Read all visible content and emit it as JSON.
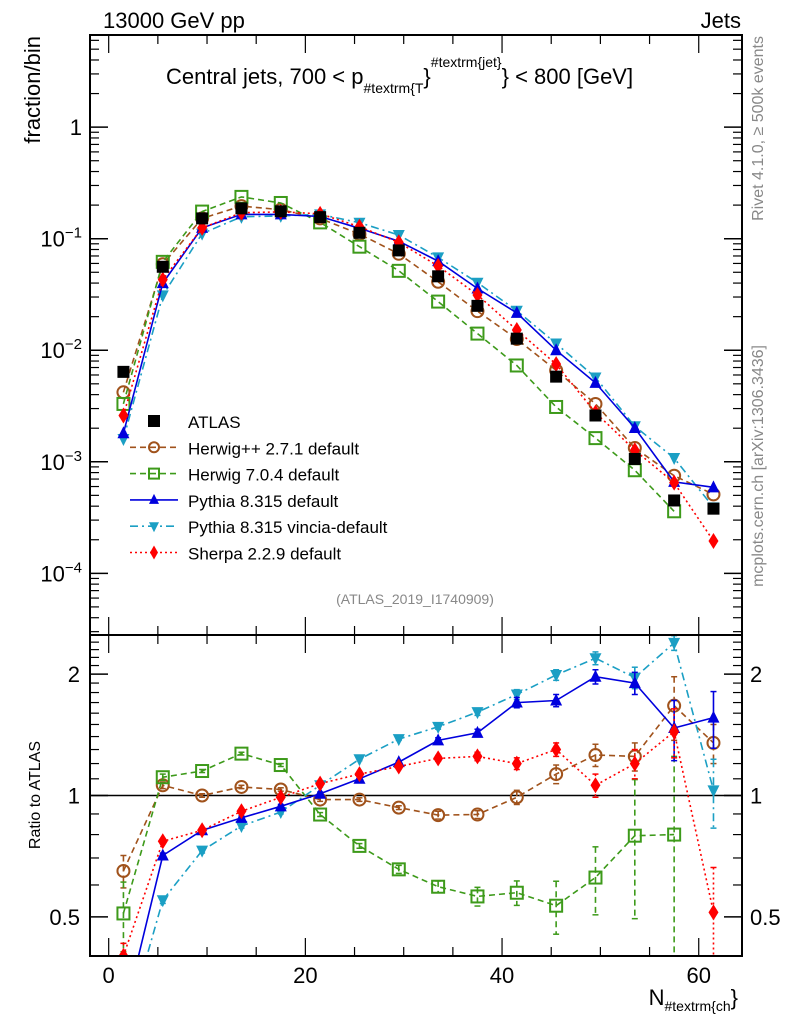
{
  "header": {
    "left": "13000 GeV pp",
    "right": "Jets"
  },
  "side_labels": {
    "rivet": "Rivet 4.1.0, ≥ 500k events",
    "mcplots": "mcplots.cern.ch [arXiv:1306.3436]"
  },
  "chart_data": [
    {
      "type": "line",
      "panel": "main",
      "title": "Central jets, 700 < p_{#textrm{T}}^{#textrm{jet}} < 800 [GeV]",
      "title_parts": {
        "pre": "Central jets, 700 < p",
        "sub": "#textrm{T",
        "close1": "}",
        "sup": "#textrm{jet}",
        "post": "} < 800 [GeV]"
      },
      "ylabel": "fraction/bin",
      "yscale": "log",
      "ylim": [
        2.8e-05,
        6.7
      ],
      "xlim": [
        -1.9,
        64.4
      ],
      "y_tick_labels": [
        "1",
        "10^-1",
        "10^-2",
        "10^-3",
        "10^-4"
      ],
      "y_tick_values": [
        1,
        0.1,
        0.01,
        0.001,
        0.0001
      ],
      "annotation": "(ATLAS_2019_I1740909)",
      "legend_position": "lower-left",
      "x": [
        1.5,
        5.5,
        9.5,
        13.5,
        17.5,
        21.5,
        25.5,
        29.5,
        33.5,
        37.5,
        41.5,
        45.5,
        49.5,
        53.5,
        57.5,
        61.5
      ],
      "series": [
        {
          "name": "ATLAS",
          "color": "#000000",
          "marker": "square",
          "line": "none",
          "values": [
            0.0064,
            0.056,
            0.152,
            0.187,
            0.176,
            0.156,
            0.113,
            0.0785,
            0.046,
            0.025,
            0.0127,
            0.0058,
            0.0026,
            0.00106,
            0.00045,
            0.00038
          ]
        },
        {
          "name": "Herwig++ 2.7.1 default",
          "color": "#a0521b",
          "marker": "open-circle",
          "line": "dashed",
          "values": [
            0.0042,
            0.059,
            0.152,
            0.196,
            0.182,
            0.152,
            0.11,
            0.0732,
            0.0411,
            0.0224,
            0.0126,
            0.0066,
            0.0033,
            0.00133,
            0.00075,
            0.00051
          ]
        },
        {
          "name": "Herwig 7.0.4 default",
          "color": "#3d9a1a",
          "marker": "open-square",
          "line": "dashed",
          "values": [
            0.0033,
            0.062,
            0.175,
            0.237,
            0.209,
            0.14,
            0.0848,
            0.0515,
            0.0273,
            0.0141,
            0.0073,
            0.0031,
            0.00163,
            0.00084,
            0.00036,
            null
          ]
        },
        {
          "name": "Pythia 8.315 default",
          "color": "#0000dd",
          "marker": "triangle-up",
          "line": "solid",
          "values": [
            0.0018,
            0.04,
            0.125,
            0.165,
            0.165,
            0.158,
            0.124,
            0.095,
            0.063,
            0.0358,
            0.0216,
            0.01,
            0.0051,
            0.00201,
            0.00066,
            0.00059
          ]
        },
        {
          "name": "Pythia 8.315 vincia-default",
          "color": "#1b9fc4",
          "marker": "triangle-down",
          "line": "dashdot",
          "values": [
            0.0016,
            0.031,
            0.111,
            0.157,
            0.16,
            0.165,
            0.139,
            0.108,
            0.068,
            0.0403,
            0.0226,
            0.0115,
            0.0057,
            0.00208,
            0.00108,
            0.00039
          ]
        },
        {
          "name": "Sherpa 2.2.9 default",
          "color": "#ff0000",
          "marker": "diamond",
          "line": "dotted",
          "values": [
            0.0026,
            0.043,
            0.125,
            0.171,
            0.174,
            0.167,
            0.128,
            0.0926,
            0.0569,
            0.0313,
            0.0152,
            0.0075,
            0.00276,
            0.00127,
            0.00065,
            0.000195
          ]
        }
      ]
    },
    {
      "type": "line",
      "panel": "ratio",
      "ylabel": "Ratio to ATLAS",
      "xlabel": "N_{#textrm{ch}}",
      "xlabel_parts": {
        "main": "N",
        "sub": "#textrm{ch",
        "close": "}"
      },
      "yscale": "log",
      "ylim": [
        0.4,
        2.5
      ],
      "xlim": [
        -1.9,
        64.4
      ],
      "x_tick_labels": [
        "0",
        "20",
        "40",
        "60"
      ],
      "x_tick_values": [
        0,
        20,
        40,
        60
      ],
      "y_tick_labels": [
        "0.5",
        "1",
        "2"
      ],
      "y_tick_values": [
        0.5,
        1,
        2
      ],
      "reference_line": 1,
      "x": [
        1.5,
        5.5,
        9.5,
        13.5,
        17.5,
        21.5,
        25.5,
        29.5,
        33.5,
        37.5,
        41.5,
        45.5,
        49.5,
        53.5,
        57.5,
        61.5
      ],
      "series": [
        {
          "name": "Herwig++ 2.7.1 default",
          "color": "#a0521b",
          "marker": "open-circle",
          "line": "dashed",
          "values": [
            0.65,
            1.06,
            1.0,
            1.05,
            1.035,
            0.977,
            0.977,
            0.933,
            0.894,
            0.897,
            0.99,
            1.13,
            1.26,
            1.25,
            1.67,
            1.35
          ],
          "errors": [
            0.06,
            0.02,
            0.01,
            0.01,
            0.01,
            0.01,
            0.01,
            0.01,
            0.02,
            0.02,
            0.04,
            0.06,
            0.08,
            0.1,
            0.3,
            0.15
          ]
        },
        {
          "name": "Herwig 7.0.4 default",
          "color": "#3d9a1a",
          "marker": "open-square",
          "line": "dashed",
          "values": [
            0.51,
            1.11,
            1.15,
            1.27,
            1.19,
            0.897,
            0.75,
            0.656,
            0.594,
            0.562,
            0.574,
            0.533,
            0.626,
            0.795,
            0.8,
            null
          ],
          "errors": [
            0.1,
            0.02,
            0.01,
            0.01,
            0.01,
            0.01,
            0.01,
            0.015,
            0.02,
            0.03,
            0.04,
            0.08,
            0.12,
            0.3,
            0.45,
            null
          ]
        },
        {
          "name": "Pythia 8.315 default",
          "color": "#0000dd",
          "marker": "triangle-up",
          "line": "solid",
          "values": [
            0.28,
            0.71,
            0.82,
            0.88,
            0.94,
            1.01,
            1.1,
            1.21,
            1.37,
            1.43,
            1.7,
            1.72,
            1.97,
            1.9,
            1.47,
            1.56
          ],
          "errors": [
            0.02,
            0.01,
            0.01,
            0.01,
            0.01,
            0.01,
            0.01,
            0.01,
            0.02,
            0.03,
            0.05,
            0.06,
            0.08,
            0.12,
            0.25,
            0.25
          ]
        },
        {
          "name": "Pythia 8.315 vincia-default",
          "color": "#1b9fc4",
          "marker": "triangle-down",
          "line": "dashdot",
          "values": [
            0.25,
            0.55,
            0.73,
            0.84,
            0.91,
            1.06,
            1.23,
            1.38,
            1.48,
            1.61,
            1.78,
            1.99,
            2.19,
            1.96,
            2.39,
            1.03
          ],
          "errors": [
            0.02,
            0.01,
            0.01,
            0.01,
            0.01,
            0.01,
            0.01,
            0.01,
            0.02,
            0.03,
            0.05,
            0.06,
            0.08,
            0.12,
            0.1,
            0.2
          ]
        },
        {
          "name": "Sherpa 2.2.9 default",
          "color": "#ff0000",
          "marker": "diamond",
          "line": "dotted",
          "values": [
            0.4,
            0.77,
            0.82,
            0.914,
            0.99,
            1.07,
            1.13,
            1.18,
            1.236,
            1.25,
            1.2,
            1.3,
            1.06,
            1.2,
            1.44,
            0.513
          ],
          "errors": [
            0.03,
            0.01,
            0.01,
            0.01,
            0.01,
            0.01,
            0.01,
            0.01,
            0.02,
            0.03,
            0.04,
            0.05,
            0.07,
            0.1,
            0.2,
            0.15
          ]
        }
      ]
    }
  ]
}
